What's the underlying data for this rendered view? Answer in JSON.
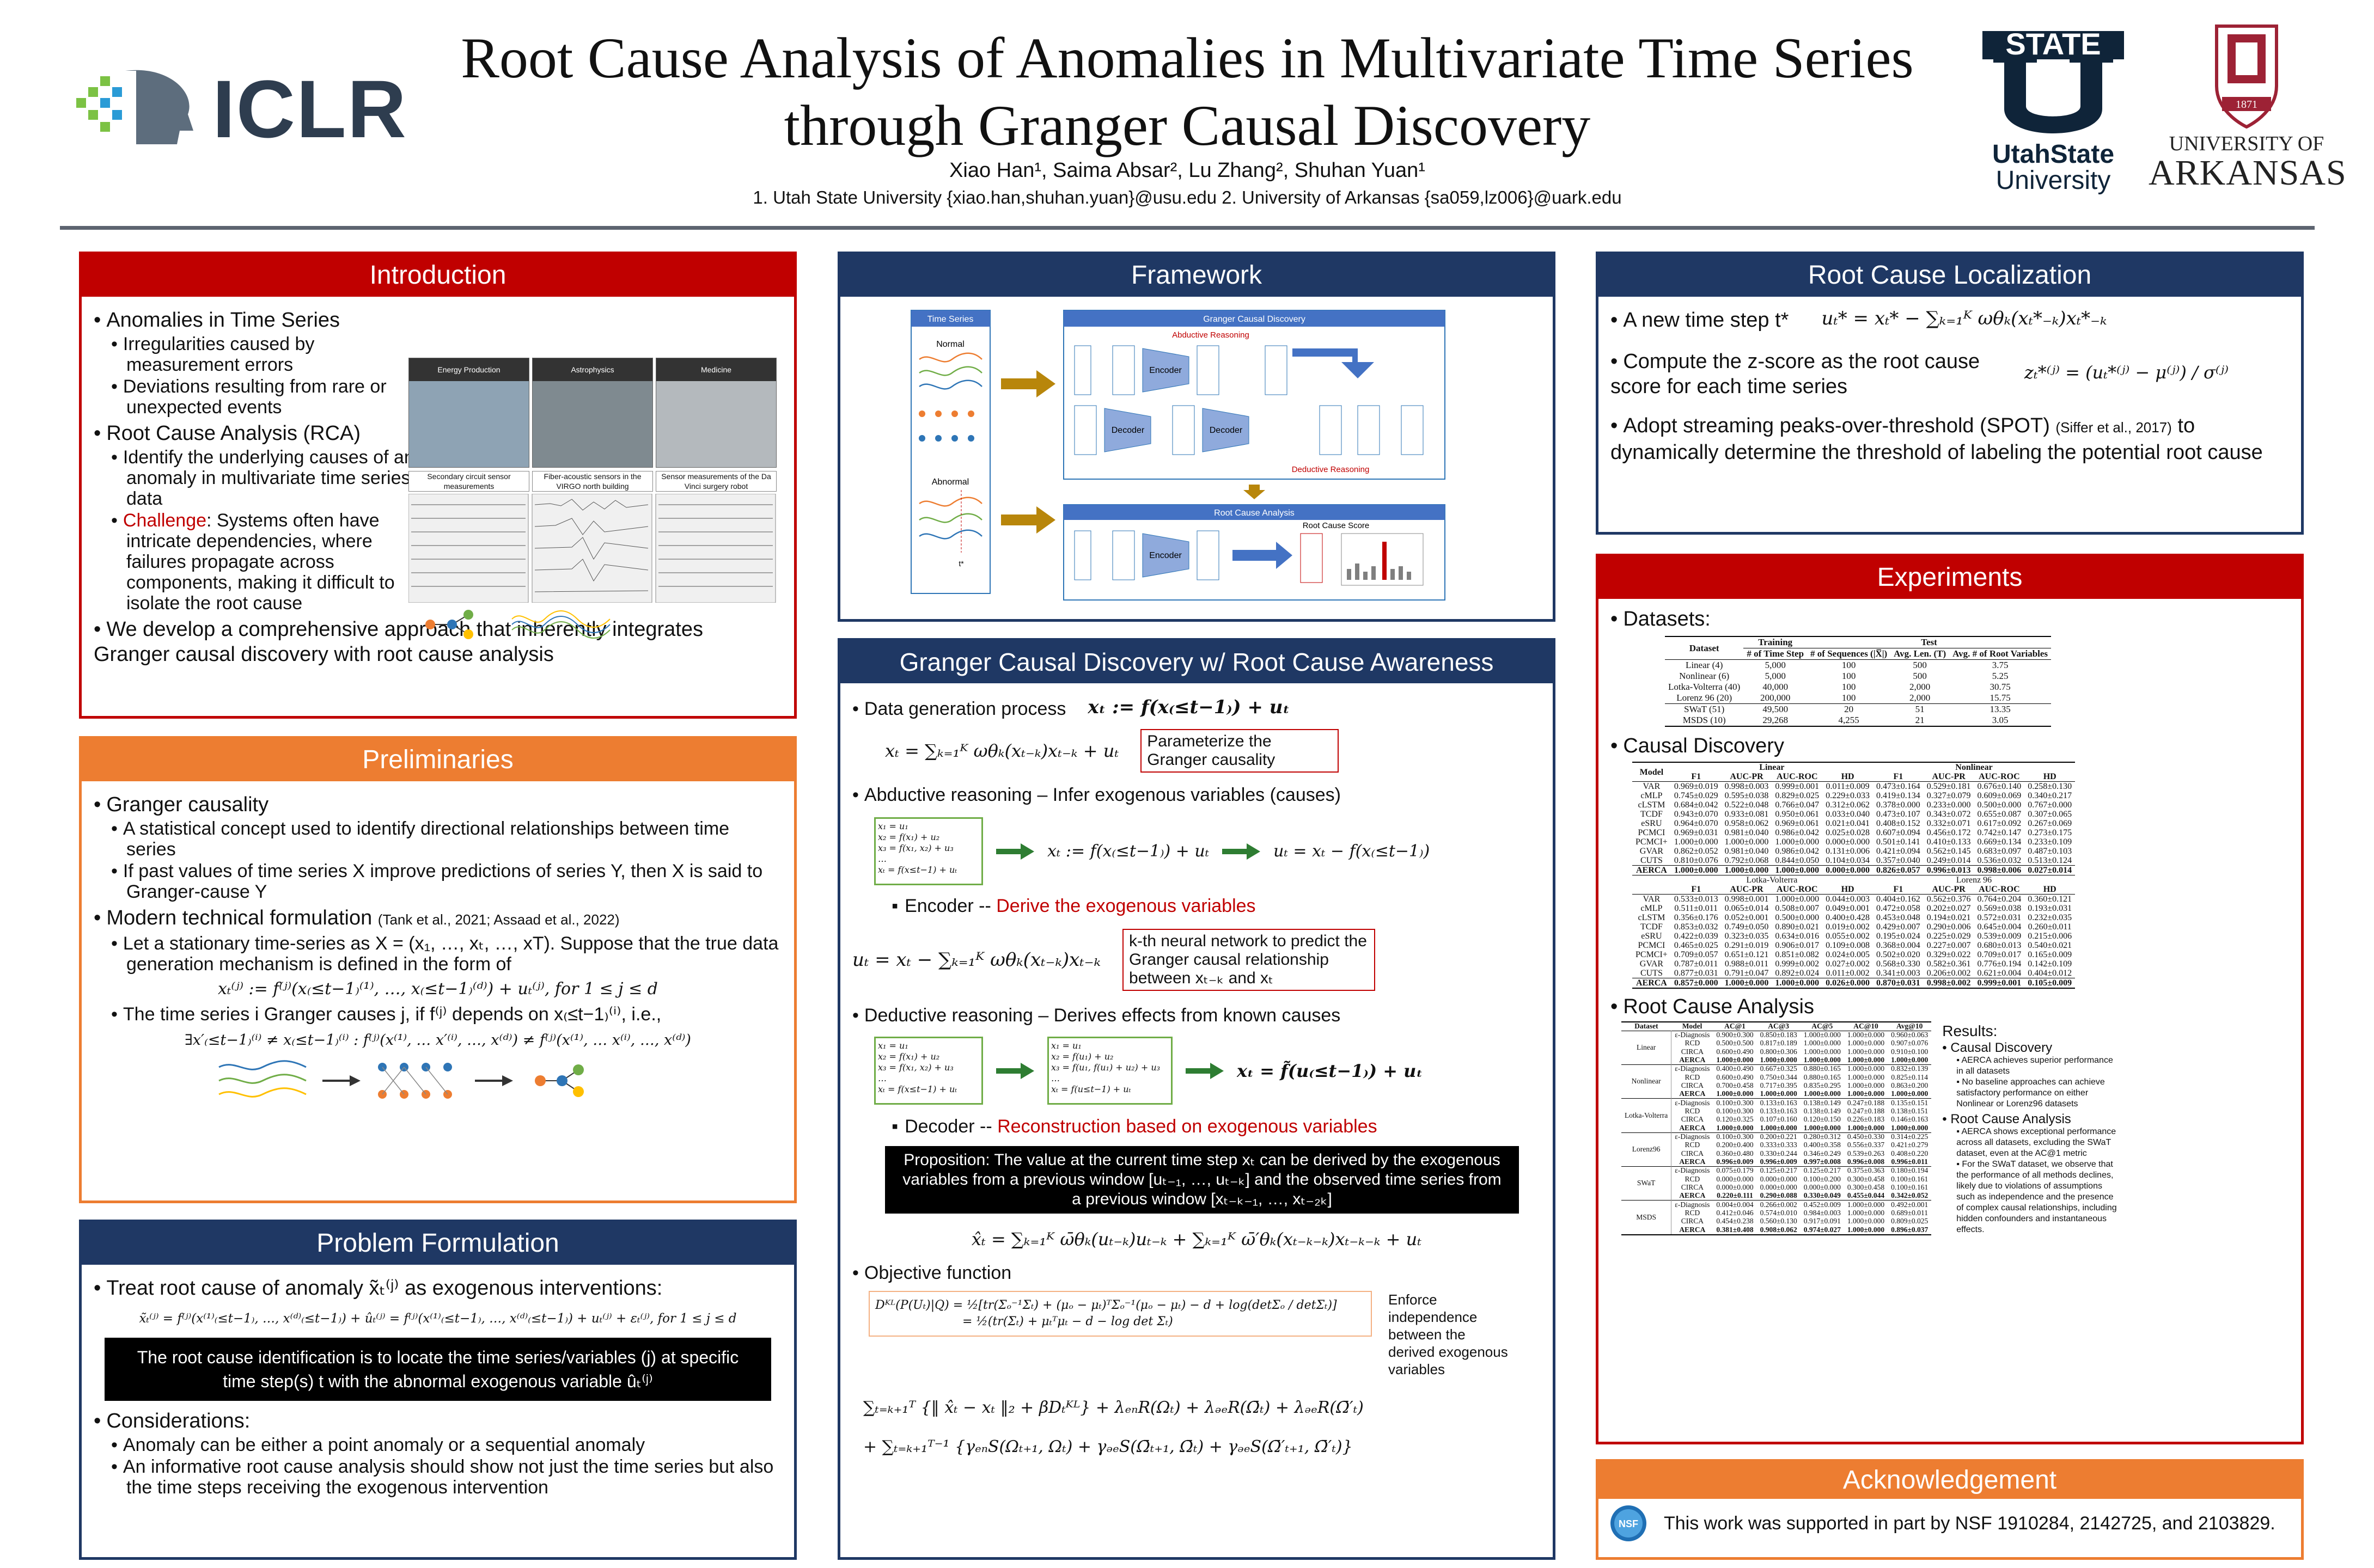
{
  "header": {
    "title_line1": "Root Cause Analysis of Anomalies in Multivariate Time Series",
    "title_line2": "through Granger Causal Discovery",
    "authors": "Xiao Han¹, Saima Absar², Lu Zhang², Shuhan Yuan¹",
    "affiliations": "1. Utah State University {xiao.han,shuhan.yuan}@usu.edu  2. University of Arkansas {sa059,lz006}@uark.edu",
    "logo_iclr": "ICLR",
    "logo_usu_state": "STATE",
    "logo_usu_name1": "UtahState",
    "logo_usu_name2": "University",
    "logo_uark_year": "1871",
    "logo_uark_name1": "UNIVERSITY OF",
    "logo_uark_name2": "ARKANSAS"
  },
  "introduction": {
    "title": "Introduction",
    "b1": "Anomalies in Time Series",
    "b1a": "Irregularities caused by measurement errors",
    "b1b": "Deviations resulting from rare or unexpected events",
    "b2": "Root Cause Analysis (RCA)",
    "b2a": "Identify the underlying causes of an anomaly in multivariate time series data",
    "b2b_label": "Challenge",
    "b2b_text": ": Systems often have intricate dependencies, where failures propagate across components, making it difficult to isolate the root cause",
    "b3": "We develop a comprehensive approach that inherently integrates Granger causal discovery with root cause analysis",
    "img_labels": [
      "Energy Production",
      "Astrophysics",
      "Medicine"
    ],
    "img_captions": [
      "Secondary circuit sensor measurements",
      "Fiber-acoustic sensors in the VIRGO north building",
      "Sensor measurements of the Da Vinci surgery robot"
    ]
  },
  "preliminaries": {
    "title": "Preliminaries",
    "b1": "Granger causality",
    "b1a": "A statistical concept used to identify directional relationships between time series",
    "b1b": "If past values of time series X improve predictions of series Y, then X is said to Granger-cause Y",
    "b2": "Modern technical formulation",
    "b2_cite": "(Tank et al., 2021; Assaad et al., 2022)",
    "b2a": "Let a stationary time-series as X = (x₁, …, xₜ, …, xT). Suppose that the true data generation mechanism is defined in the form of",
    "eq1": "xₜ⁽ʲ⁾ := f⁽ʲ⁾(x₍≤t−1₎⁽¹⁾, …, x₍≤t−1₎⁽ᵈ⁾) + uₜ⁽ʲ⁾, for 1 ≤ j ≤ d",
    "b2b": "The time series i Granger causes j, if f⁽ʲ⁾ depends on x₍≤t−1₎⁽ⁱ⁾, i.e.,",
    "eq2": "∃x′₍≤t−1₎⁽ⁱ⁾ ≠ x₍≤t−1₎⁽ⁱ⁾ : f⁽ʲ⁾(x⁽¹⁾, … x′⁽ⁱ⁾, …, x⁽ᵈ⁾) ≠ f⁽ʲ⁾(x⁽¹⁾, … x⁽ⁱ⁾, …, x⁽ᵈ⁾)"
  },
  "problem": {
    "title": "Problem Formulation",
    "b1": "Treat root cause of anomaly x̃ₜ⁽ʲ⁾ as exogenous interventions:",
    "eq": "x̃ₜ⁽ʲ⁾ = f⁽ʲ⁾(x⁽¹⁾₍≤t−1₎, …, x⁽ᵈ⁾₍≤t−1₎) + ûₜ⁽ʲ⁾ = f⁽ʲ⁾(x⁽¹⁾₍≤t−1₎, …, x⁽ᵈ⁾₍≤t−1₎) + uₜ⁽ʲ⁾ + εₜ⁽ʲ⁾, for 1 ≤ j ≤ d",
    "box": "The root cause identification is to locate the time series/variables (j) at specific time step(s) t with the abnormal exogenous variable ûₜ⁽ʲ⁾",
    "b2": "Considerations:",
    "b2a": "Anomaly can be either a point anomaly or a sequential anomaly",
    "b2b": "An informative root cause analysis should show not just the time series but also the time steps receiving the exogenous intervention"
  },
  "framework": {
    "title": "Framework",
    "ts_label": "Time Series",
    "normal": "Normal",
    "abnormal": "Abnormal",
    "t_star": "t*",
    "gcd_label": "Granger Causal Discovery",
    "abductive": "Abductive Reasoning",
    "deductive": "Deductive Reasoning",
    "rca_label": "Root Cause Analysis",
    "score_label": "Root Cause Score",
    "encoder": "Encoder",
    "decoder": "Decoder"
  },
  "gcd": {
    "title": "Granger Causal Discovery w/ Root Cause Awareness",
    "s1": "Data generation process",
    "s1_eq": "xₜ := f(x₍≤t−1₎) + uₜ",
    "s1_eq2": "xₜ = ∑ₖ₌₁ᴷ ωθₖ(xₜ₋ₖ)xₜ₋ₖ + uₜ",
    "s1_note": "Parameterize the Granger causality",
    "s2": "Abductive reasoning – Infer exogenous variables (causes)",
    "s2_eq_a": "xₜ := f(x₍≤t−1₎) + uₜ",
    "s2_eq_b": "uₜ = xₜ − f(x₍≤t−1₎)",
    "enc_label": "Encoder --",
    "enc_text": "Derive the exogenous variables",
    "enc_eq": "uₜ = xₜ − ∑ₖ₌₁ᴷ ωθₖ(xₜ₋ₖ)xₜ₋ₖ",
    "enc_note": "k-th neural network to predict the Granger causal relationship between xₜ₋ₖ and xₜ",
    "s3": "Deductive reasoning – Derives effects from known causes",
    "s3_eq": "xₜ = f̃(u₍≤t−1₎) + uₜ",
    "dec_label": "Decoder --",
    "dec_text": "Reconstruction based on exogenous variables",
    "prop": "Proposition: The value at the current time step xₜ can be derived by the exogenous variables from a previous window [uₜ₋₁, …, uₜ₋ₖ] and the observed time series from a previous window [xₜ₋ₖ₋₁, …, xₜ₋₂ₖ]",
    "dec_eq": "x̂ₜ = ∑ₖ₌₁ᴷ ω̄θₖ(uₜ₋ₖ)uₜ₋ₖ + ∑ₖ₌₁ᴷ ω̄′θₖ(xₜ₋ₖ₋ₖ)xₜ₋ₖ₋ₖ + uₜ",
    "s4": "Objective function",
    "kl_eq1": "Dᴷᴸ(P(Uₜ)|Q) = ½[tr(Σₒ⁻¹Σₜ) + (μₒ − μₜ)ᵀΣₒ⁻¹(μₒ − μₜ) − d + log(detΣₒ / detΣₜ)]",
    "kl_eq2": "= ½(tr(Σₜ) + μₜᵀμₜ − d − log det Σₜ)",
    "enforce": "Enforce independence between the derived exogenous variables",
    "obj_eq1": "∑ₜ₌ₖ₊₁ᵀ {‖ x̂ₜ − xₜ ‖₂ + βDₜᴷᴸ} + λₑₙR(Ωₜ) + λₔₑR(Ω̄ₜ) + λₔₑR(Ω̄′ₜ)",
    "obj_eq2": "+ ∑ₜ₌ₖ₊₁ᵀ⁻¹ {γₑₙS(Ωₜ₊₁, Ωₜ) + γₔₑS(Ω̄ₜ₊₁, Ω̄ₜ) + γₔₑS(Ω̄′ₜ₊₁, Ω̄′ₜ)}"
  },
  "rcl": {
    "title": "Root Cause Localization",
    "b1": "A new time step t*",
    "eq1": "uₜ* = xₜ* − ∑ₖ₌₁ᴷ ωθₖ(xₜ*₋ₖ)xₜ*₋ₖ",
    "b2": "Compute the z-score as the root cause score for each time series",
    "eq2": "zₜ*⁽ʲ⁾ = (uₜ*⁽ʲ⁾ − μ⁽ʲ⁾) / σ⁽ʲ⁾",
    "b3a": "Adopt streaming peaks-over-threshold (SPOT)",
    "b3_cite": "(Siffer et al., 2017)",
    "b3b": "to dynamically determine the threshold of labeling the potential root cause"
  },
  "experiments": {
    "title": "Experiments",
    "datasets_label": "Datasets:",
    "ds_header_top": [
      "Dataset",
      "Training",
      "Test"
    ],
    "ds_header": [
      "# of Time Step",
      "# of Sequences (|X̅|)",
      "Avg. Len. (T)",
      "Avg. # of Root Variables"
    ],
    "ds_rows": [
      [
        "Linear (4)",
        "5,000",
        "100",
        "500",
        "3.75"
      ],
      [
        "Nonlinear (6)",
        "5,000",
        "100",
        "500",
        "5.25"
      ],
      [
        "Lotka-Volterra (40)",
        "40,000",
        "100",
        "2,000",
        "30.75"
      ],
      [
        "Lorenz 96 (20)",
        "200,000",
        "100",
        "2,000",
        "15.75"
      ],
      [
        "SWaT (51)",
        "49,500",
        "20",
        "51",
        "13.35"
      ],
      [
        "MSDS (10)",
        "29,268",
        "4,255",
        "21",
        "3.05"
      ]
    ],
    "cd_label": "Causal Discovery",
    "cd_groups1": [
      "Linear",
      "Nonlinear"
    ],
    "cd_groups2": [
      "Lotka-Volterra",
      "Lorenz 96"
    ],
    "cd_cols": [
      "Model",
      "F1",
      "AUC-PR",
      "AUC-ROC",
      "HD",
      "F1",
      "AUC-PR",
      "AUC-ROC",
      "HD"
    ],
    "cd_rows1": [
      [
        "VAR",
        "0.969±0.019",
        "0.998±0.003",
        "0.999±0.001",
        "0.011±0.009",
        "0.473±0.164",
        "0.529±0.181",
        "0.676±0.140",
        "0.258±0.130"
      ],
      [
        "cMLP",
        "0.745±0.029",
        "0.595±0.038",
        "0.829±0.025",
        "0.229±0.033",
        "0.419±0.134",
        "0.327±0.079",
        "0.609±0.069",
        "0.340±0.217"
      ],
      [
        "cLSTM",
        "0.684±0.042",
        "0.522±0.048",
        "0.766±0.047",
        "0.312±0.062",
        "0.378±0.000",
        "0.233±0.000",
        "0.500±0.000",
        "0.767±0.000"
      ],
      [
        "TCDF",
        "0.943±0.070",
        "0.933±0.081",
        "0.950±0.061",
        "0.033±0.040",
        "0.473±0.107",
        "0.343±0.072",
        "0.655±0.087",
        "0.307±0.065"
      ],
      [
        "eSRU",
        "0.964±0.070",
        "0.958±0.062",
        "0.969±0.061",
        "0.021±0.041",
        "0.408±0.152",
        "0.332±0.071",
        "0.617±0.092",
        "0.267±0.069"
      ],
      [
        "PCMCI",
        "0.969±0.031",
        "0.981±0.040",
        "0.986±0.042",
        "0.025±0.028",
        "0.607±0.094",
        "0.456±0.172",
        "0.742±0.147",
        "0.273±0.175"
      ],
      [
        "PCMCI+",
        "1.000±0.000",
        "1.000±0.000",
        "1.000±0.000",
        "0.000±0.000",
        "0.501±0.141",
        "0.410±0.133",
        "0.669±0.134",
        "0.233±0.109"
      ],
      [
        "GVAR",
        "0.862±0.052",
        "0.981±0.040",
        "0.986±0.042",
        "0.131±0.006",
        "0.421±0.094",
        "0.562±0.145",
        "0.683±0.097",
        "0.487±0.103"
      ],
      [
        "CUTS",
        "0.810±0.076",
        "0.792±0.068",
        "0.844±0.050",
        "0.104±0.034",
        "0.357±0.040",
        "0.249±0.014",
        "0.536±0.032",
        "0.513±0.124"
      ],
      [
        "AERCA",
        "1.000±0.000",
        "1.000±0.000",
        "1.000±0.000",
        "0.000±0.000",
        "0.826±0.057",
        "0.996±0.013",
        "0.998±0.006",
        "0.027±0.014"
      ]
    ],
    "cd_rows2": [
      [
        "VAR",
        "0.533±0.013",
        "0.998±0.001",
        "1.000±0.000",
        "0.044±0.003",
        "0.404±0.162",
        "0.562±0.376",
        "0.764±0.204",
        "0.360±0.121"
      ],
      [
        "cMLP",
        "0.511±0.011",
        "0.065±0.014",
        "0.508±0.007",
        "0.049±0.001",
        "0.472±0.058",
        "0.202±0.027",
        "0.569±0.038",
        "0.193±0.031"
      ],
      [
        "cLSTM",
        "0.356±0.176",
        "0.052±0.001",
        "0.500±0.000",
        "0.400±0.428",
        "0.453±0.048",
        "0.194±0.021",
        "0.572±0.031",
        "0.232±0.035"
      ],
      [
        "TCDF",
        "0.853±0.032",
        "0.749±0.050",
        "0.890±0.021",
        "0.019±0.002",
        "0.429±0.007",
        "0.290±0.006",
        "0.645±0.004",
        "0.260±0.011"
      ],
      [
        "eSRU",
        "0.422±0.039",
        "0.323±0.035",
        "0.634±0.016",
        "0.055±0.002",
        "0.195±0.024",
        "0.225±0.029",
        "0.539±0.009",
        "0.215±0.006"
      ],
      [
        "PCMCI",
        "0.465±0.025",
        "0.291±0.019",
        "0.906±0.017",
        "0.109±0.008",
        "0.368±0.004",
        "0.227±0.007",
        "0.680±0.013",
        "0.540±0.021"
      ],
      [
        "PCMCI+",
        "0.709±0.057",
        "0.651±0.121",
        "0.851±0.082",
        "0.024±0.005",
        "0.502±0.020",
        "0.329±0.022",
        "0.709±0.017",
        "0.165±0.009"
      ],
      [
        "GVAR",
        "0.787±0.011",
        "0.988±0.011",
        "0.999±0.002",
        "0.027±0.002",
        "0.568±0.330",
        "0.582±0.361",
        "0.776±0.194",
        "0.142±0.109"
      ],
      [
        "CUTS",
        "0.877±0.031",
        "0.791±0.047",
        "0.892±0.024",
        "0.011±0.002",
        "0.341±0.003",
        "0.206±0.002",
        "0.621±0.004",
        "0.404±0.012"
      ],
      [
        "AERCA",
        "0.857±0.000",
        "1.000±0.000",
        "1.000±0.000",
        "0.026±0.000",
        "0.870±0.031",
        "0.998±0.002",
        "0.999±0.001",
        "0.105±0.009"
      ]
    ],
    "rca_label": "Root Cause Analysis",
    "rca_cols": [
      "Dataset",
      "Model",
      "AC@1",
      "AC@3",
      "AC@5",
      "AC@10",
      "Avg@10"
    ],
    "rca_groups": [
      {
        "name": "Linear",
        "rows": [
          [
            "ε-Diagnosis",
            "0.900±0.300",
            "0.850±0.183",
            "1.000±0.000",
            "1.000±0.000",
            "0.960±0.063"
          ],
          [
            "RCD",
            "0.500±0.500",
            "0.817±0.189",
            "1.000±0.000",
            "1.000±0.000",
            "0.907±0.076"
          ],
          [
            "CIRCA",
            "0.600±0.490",
            "0.800±0.306",
            "1.000±0.000",
            "1.000±0.000",
            "0.910±0.100"
          ],
          [
            "AERCA",
            "1.000±0.000",
            "1.000±0.000",
            "1.000±0.000",
            "1.000±0.000",
            "1.000±0.000"
          ]
        ]
      },
      {
        "name": "Nonlinear",
        "rows": [
          [
            "ε-Diagnosis",
            "0.400±0.490",
            "0.667±0.325",
            "0.880±0.165",
            "1.000±0.000",
            "0.832±0.139"
          ],
          [
            "RCD",
            "0.600±0.490",
            "0.750±0.344",
            "0.880±0.165",
            "1.000±0.000",
            "0.825±0.114"
          ],
          [
            "CIRCA",
            "0.700±0.458",
            "0.717±0.395",
            "0.835±0.295",
            "1.000±0.000",
            "0.863±0.200"
          ],
          [
            "AERCA",
            "1.000±0.000",
            "1.000±0.000",
            "1.000±0.000",
            "1.000±0.000",
            "1.000±0.000"
          ]
        ]
      },
      {
        "name": "Lotka-Volterra",
        "rows": [
          [
            "ε-Diagnosis",
            "0.100±0.300",
            "0.133±0.163",
            "0.138±0.149",
            "0.247±0.188",
            "0.135±0.151"
          ],
          [
            "RCD",
            "0.100±0.300",
            "0.133±0.163",
            "0.138±0.149",
            "0.247±0.188",
            "0.138±0.151"
          ],
          [
            "CIRCA",
            "0.120±0.325",
            "0.107±0.160",
            "0.120±0.150",
            "0.226±0.183",
            "0.146±0.163"
          ],
          [
            "AERCA",
            "1.000±0.000",
            "1.000±0.000",
            "1.000±0.000",
            "1.000±0.000",
            "1.000±0.000"
          ]
        ]
      },
      {
        "name": "Lorenz96",
        "rows": [
          [
            "ε-Diagnosis",
            "0.100±0.300",
            "0.200±0.221",
            "0.280±0.312",
            "0.450±0.330",
            "0.314±0.225"
          ],
          [
            "RCD",
            "0.200±0.400",
            "0.333±0.333",
            "0.400±0.358",
            "0.556±0.337",
            "0.421±0.279"
          ],
          [
            "CIRCA",
            "0.360±0.480",
            "0.330±0.244",
            "0.346±0.249",
            "0.539±0.263",
            "0.408±0.220"
          ],
          [
            "AERCA",
            "0.996±0.009",
            "0.996±0.009",
            "0.997±0.008",
            "0.996±0.008",
            "0.996±0.011"
          ]
        ]
      },
      {
        "name": "SWaT",
        "rows": [
          [
            "ε-Diagnosis",
            "0.075±0.179",
            "0.125±0.217",
            "0.125±0.217",
            "0.375±0.363",
            "0.180±0.194"
          ],
          [
            "RCD",
            "0.000±0.000",
            "0.000±0.000",
            "0.100±0.200",
            "0.300±0.458",
            "0.100±0.161"
          ],
          [
            "CIRCA",
            "0.000±0.000",
            "0.000±0.000",
            "0.000±0.000",
            "0.300±0.458",
            "0.100±0.161"
          ],
          [
            "AERCA",
            "0.220±0.111",
            "0.290±0.088",
            "0.330±0.049",
            "0.455±0.044",
            "0.342±0.052"
          ]
        ]
      },
      {
        "name": "MSDS",
        "rows": [
          [
            "ε-Diagnosis",
            "0.004±0.004",
            "0.266±0.002",
            "0.452±0.009",
            "1.000±0.000",
            "0.492±0.001"
          ],
          [
            "RCD",
            "0.412±0.046",
            "0.574±0.010",
            "0.984±0.003",
            "1.000±0.000",
            "0.689±0.011"
          ],
          [
            "CIRCA",
            "0.454±0.238",
            "0.560±0.130",
            "0.917±0.091",
            "1.000±0.000",
            "0.809±0.025"
          ],
          [
            "AERCA",
            "0.381±0.408",
            "0.908±0.062",
            "0.974±0.027",
            "1.000±0.000",
            "0.896±0.037"
          ]
        ]
      }
    ],
    "results_title": "Results:",
    "res1": "Causal Discovery",
    "res1a": "AERCA achieves superior performance in all datasets",
    "res1b": "No baseline approaches can achieve satisfactory performance on either Nonlinear or Lorenz96 datasets",
    "res2": "Root Cause Analysis",
    "res2a": "AERCA shows exceptional performance across all datasets, excluding the SWaT dataset, even at the AC@1 metric",
    "res2b": "For the SWaT dataset, we observe that the performance of all methods declines, likely due to violations of assumptions such as independence and the presence of complex causal relationships, including hidden confounders and instantaneous effects."
  },
  "ack": {
    "title": "Acknowledgement",
    "text": "This work was supported in part by NSF 1910284, 2142725, and 2103829.",
    "logo": "NSF"
  }
}
